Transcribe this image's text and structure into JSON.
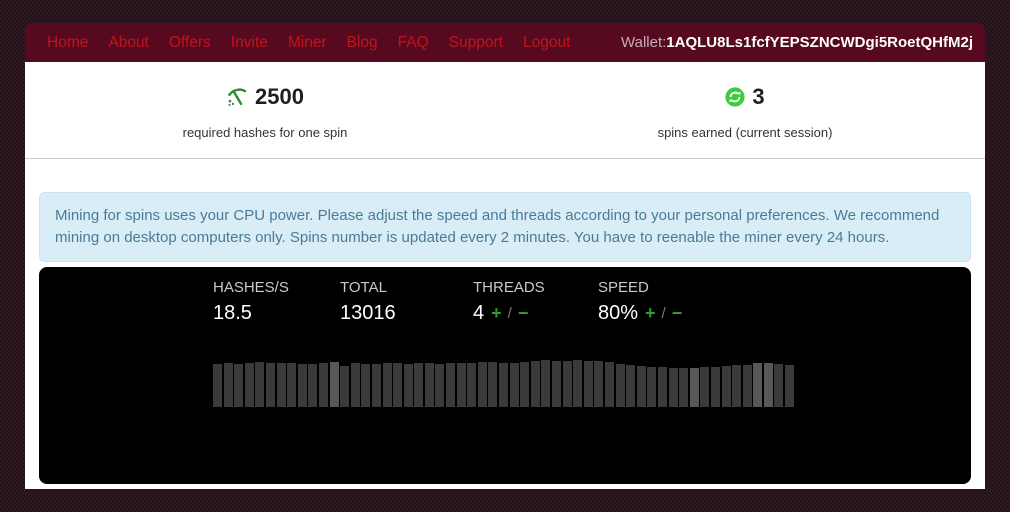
{
  "nav": {
    "items": [
      "Home",
      "About",
      "Offers",
      "Invite",
      "Miner",
      "Blog",
      "FAQ",
      "Support",
      "Logout"
    ],
    "wallet_label": "Wallet:",
    "wallet_address": "1AQLU8Ls1fcfYEPSZNCWDgi5RoetQHfM2j"
  },
  "stats": {
    "hashes": {
      "value": "2500",
      "label": "required hashes for one spin"
    },
    "spins": {
      "value": "3",
      "label": "spins earned (current session)"
    }
  },
  "notice": "Mining for spins uses your CPU power. Please adjust the speed and threads according to your personal preferences. We recommend mining on desktop computers only. Spins number is updated every 2 minutes. You have to reenable the miner every 24 hours.",
  "miner": {
    "hashes_per_sec": {
      "label": "HASHES/S",
      "value": "18.5"
    },
    "total": {
      "label": "TOTAL",
      "value": "13016"
    },
    "threads": {
      "label": "THREADS",
      "value": "4",
      "increase": "+",
      "separator": "/",
      "decrease": "−"
    },
    "speed": {
      "label": "SPEED",
      "value": "80%",
      "increase": "+",
      "separator": "/",
      "decrease": "−"
    }
  },
  "chart_data": {
    "type": "bar",
    "title": "hashrate history bars (relative heights, px)",
    "values": [
      43,
      44,
      43,
      44,
      45,
      44,
      44,
      44,
      43,
      43,
      44,
      45,
      41,
      44,
      43,
      43,
      44,
      44,
      43,
      44,
      44,
      43,
      44,
      44,
      44,
      45,
      45,
      44,
      44,
      45,
      46,
      47,
      46,
      46,
      47,
      46,
      46,
      45,
      43,
      42,
      41,
      40,
      40,
      39,
      39,
      39,
      40,
      40,
      41,
      42,
      42,
      44,
      44,
      43,
      42
    ],
    "highlight_indices": [
      11,
      45,
      51,
      52
    ],
    "bar_color": "#3a3a3a",
    "highlight_color": "#585858",
    "ylim": [
      0,
      48
    ],
    "grid": false,
    "legend": false
  },
  "colors": {
    "navbar_bg": "#57091f",
    "nav_link": "#c0151d",
    "notice_bg": "#d9edf7",
    "notice_text": "#4a7b96",
    "green_icon": "#2d8a2d",
    "sync_green": "#3dcc3d",
    "control_green": "#2e9e2e",
    "panel_bg": "#000000"
  }
}
